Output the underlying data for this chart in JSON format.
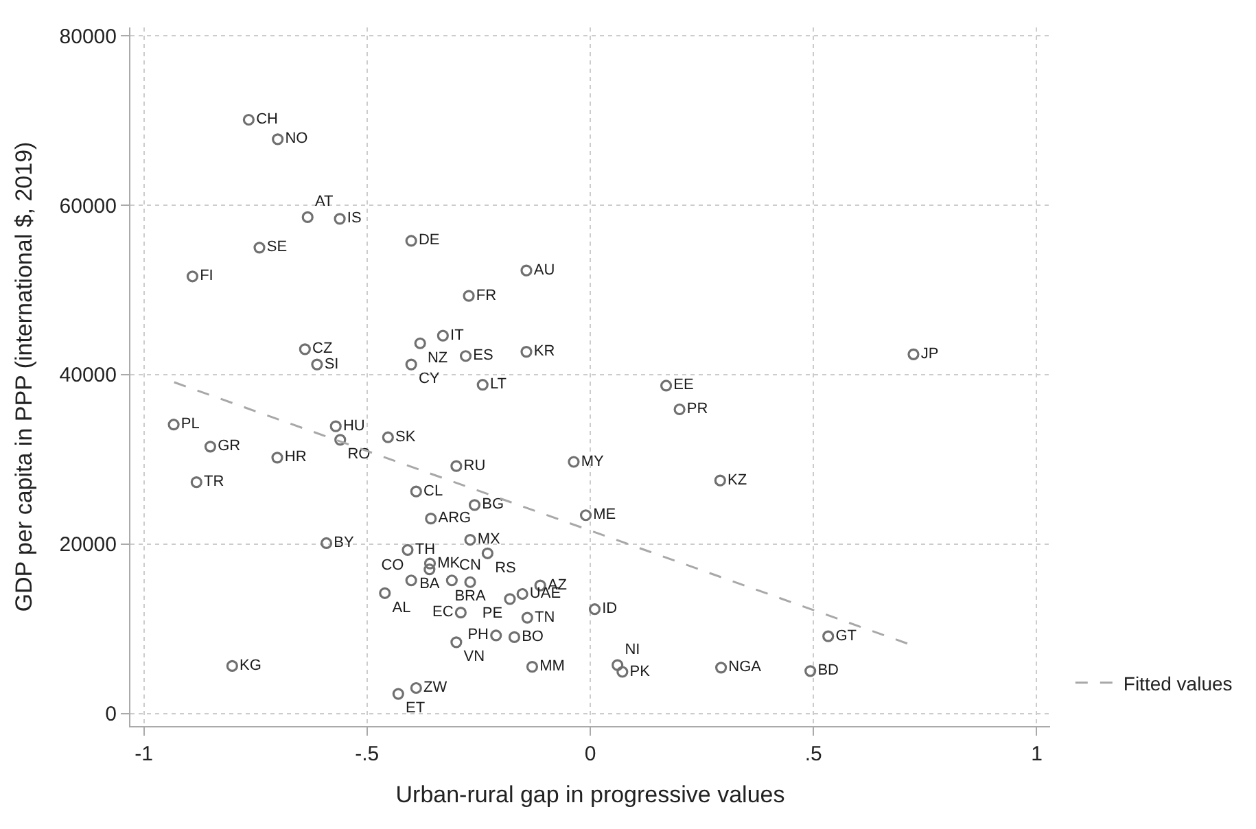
{
  "chart_data": {
    "type": "scatter",
    "xlabel": "Urban-rural gap in progressive values",
    "ylabel": "GDP per capita in PPP (international $, 2019)",
    "xlim": [
      -1.03,
      1.03
    ],
    "ylim": [
      -1500,
      81000
    ],
    "xticks": [
      {
        "value": -1,
        "label": "-1"
      },
      {
        "value": -0.5,
        "label": "-.5"
      },
      {
        "value": 0,
        "label": "0"
      },
      {
        "value": 0.5,
        "label": ".5"
      },
      {
        "value": 1,
        "label": "1"
      }
    ],
    "yticks": [
      0,
      20000,
      40000,
      60000,
      80000
    ],
    "grid": true,
    "legend": "right",
    "marker": "circle",
    "series": [
      {
        "color": "#707070",
        "x": [
          -0.765,
          -0.7,
          -0.633,
          -0.561,
          -0.741,
          -0.401,
          -0.891,
          -0.143,
          -0.272,
          -0.639,
          -0.612,
          -0.381,
          -0.33,
          -0.279,
          -0.401,
          -0.143,
          -0.241,
          0.724,
          0.17,
          0.2,
          0.291,
          0.533,
          0.293,
          0.493,
          0.061,
          0.072,
          -0.01,
          -0.037,
          -0.933,
          -0.851,
          -0.701,
          -0.882,
          -0.57,
          -0.56,
          -0.453,
          -0.3,
          -0.39,
          -0.259,
          -0.357,
          -0.269,
          -0.23,
          -0.591,
          -0.409,
          -0.359,
          -0.36,
          -0.401,
          -0.31,
          -0.269,
          -0.112,
          -0.152,
          -0.18,
          0.01,
          -0.29,
          -0.141,
          -0.46,
          -0.211,
          -0.17,
          -0.3,
          -0.13,
          -0.802,
          -0.39,
          -0.43
        ],
        "values": [
          70100,
          67800,
          58600,
          58400,
          55000,
          55800,
          51600,
          52300,
          49300,
          43000,
          41200,
          43700,
          44600,
          42200,
          41200,
          42700,
          38800,
          42400,
          38700,
          35900,
          27500,
          9100,
          5400,
          5000,
          5700,
          4900,
          23400,
          29700,
          34100,
          31500,
          30200,
          27300,
          33900,
          32300,
          32600,
          29200,
          26200,
          24600,
          23000,
          20500,
          18900,
          20100,
          19300,
          17700,
          17000,
          15700,
          15700,
          15500,
          15100,
          14100,
          13500,
          12300,
          11900,
          11300,
          14200,
          9200,
          9000,
          8400,
          5500,
          5600,
          3000,
          2300
        ],
        "value_labels": [
          "CH",
          "NO",
          "AT",
          "IS",
          "SE",
          "DE",
          "FI",
          "AU",
          "FR",
          "CZ",
          "SI",
          "NZ",
          "IT",
          "ES",
          "CY",
          "KR",
          "LT",
          "JP",
          "EE",
          "PR",
          "KZ",
          "GT",
          "NGA",
          "BD",
          "NI",
          "PK",
          "ME",
          "MY",
          "PL",
          "GR",
          "HR",
          "TR",
          "HU",
          "RO",
          "SK",
          "RU",
          "CL",
          "BG",
          "ARG",
          "MX",
          "RS",
          "BY",
          "TH",
          "MK",
          "BA",
          "CO",
          "CN",
          "BRA",
          "AZ",
          "UAE",
          "PE",
          "ID",
          "EC",
          "TN",
          "AL",
          "PH",
          "BO",
          "VN",
          "MM",
          "KG",
          "ZW",
          "ET"
        ]
      },
      {
        "type": "line",
        "name": "Fitted values",
        "color": "#a8a8a8",
        "line_style": "dashed",
        "marker": "none",
        "x": [
          -0.932,
          0.718
        ],
        "values": [
          39100,
          8100
        ]
      }
    ]
  }
}
